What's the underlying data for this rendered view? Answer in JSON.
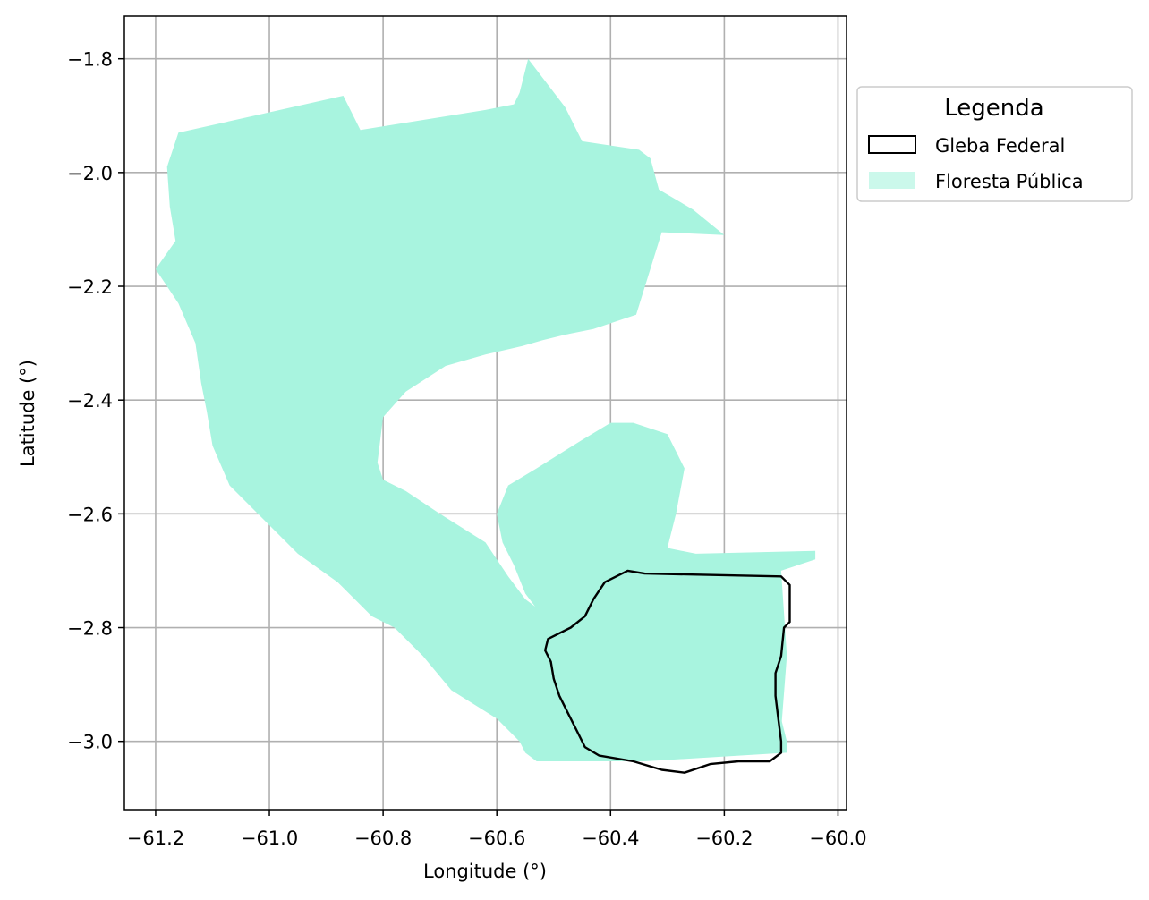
{
  "chart_data": {
    "type": "map",
    "xlabel": "Longitude (°)",
    "ylabel": "Latitude (°)",
    "xlim": [
      -61.255,
      -59.985
    ],
    "ylim": [
      -3.12,
      -1.725
    ],
    "xticks": [
      -61.2,
      -61.0,
      -60.8,
      -60.6,
      -60.4,
      -60.2,
      -60.0
    ],
    "yticks": [
      -1.8,
      -2.0,
      -2.2,
      -2.4,
      -2.6,
      -2.8,
      -3.0
    ],
    "xtick_labels": [
      "−61.2",
      "−61.0",
      "−60.8",
      "−60.6",
      "−60.4",
      "−60.2",
      "−60.0"
    ],
    "ytick_labels": [
      "−1.8",
      "−2.0",
      "−2.2",
      "−2.4",
      "−2.6",
      "−2.8",
      "−3.0"
    ],
    "grid": true,
    "legend": {
      "title": "Legenda",
      "placement": "outside-upper-right",
      "entries": [
        "Gleba Federal",
        "Floresta Pública"
      ]
    },
    "colors": {
      "floresta_fill": "#a8f4df",
      "gleba_stroke": "#000000",
      "grid": "#b0b0b0"
    },
    "layers": [
      {
        "name": "Floresta Pública",
        "style": "fill",
        "polygons": [
          [
            [
              -61.18,
              -1.99
            ],
            [
              -61.16,
              -1.93
            ],
            [
              -60.87,
              -1.865
            ],
            [
              -60.84,
              -1.925
            ],
            [
              -60.62,
              -1.89
            ],
            [
              -60.57,
              -1.88
            ],
            [
              -60.56,
              -1.86
            ],
            [
              -60.545,
              -1.8
            ],
            [
              -60.48,
              -1.885
            ],
            [
              -60.45,
              -1.945
            ],
            [
              -60.35,
              -1.96
            ],
            [
              -60.33,
              -1.975
            ],
            [
              -60.315,
              -2.03
            ],
            [
              -60.255,
              -2.065
            ],
            [
              -60.2,
              -2.11
            ],
            [
              -60.31,
              -2.105
            ],
            [
              -60.355,
              -2.25
            ],
            [
              -60.43,
              -2.275
            ],
            [
              -60.48,
              -2.285
            ],
            [
              -60.52,
              -2.295
            ],
            [
              -60.555,
              -2.305
            ],
            [
              -60.62,
              -2.32
            ],
            [
              -60.69,
              -2.34
            ],
            [
              -60.76,
              -2.385
            ],
            [
              -60.8,
              -2.43
            ],
            [
              -60.81,
              -2.51
            ],
            [
              -60.8,
              -2.54
            ],
            [
              -60.76,
              -2.56
            ],
            [
              -60.7,
              -2.6
            ],
            [
              -60.62,
              -2.65
            ],
            [
              -60.58,
              -2.71
            ],
            [
              -60.55,
              -2.75
            ],
            [
              -60.51,
              -2.78
            ],
            [
              -60.47,
              -2.8
            ],
            [
              -60.44,
              -2.81
            ],
            [
              -60.41,
              -2.79
            ],
            [
              -60.37,
              -2.8
            ],
            [
              -60.3,
              -2.83
            ],
            [
              -60.23,
              -2.85
            ],
            [
              -60.2,
              -2.87
            ],
            [
              -60.15,
              -2.92
            ],
            [
              -60.1,
              -2.96
            ],
            [
              -60.09,
              -3.0
            ],
            [
              -60.09,
              -3.02
            ],
            [
              -60.34,
              -3.035
            ],
            [
              -60.53,
              -3.035
            ],
            [
              -60.55,
              -3.02
            ],
            [
              -60.56,
              -3.0
            ],
            [
              -60.6,
              -2.96
            ],
            [
              -60.68,
              -2.91
            ],
            [
              -60.73,
              -2.85
            ],
            [
              -60.78,
              -2.8
            ],
            [
              -60.82,
              -2.78
            ],
            [
              -60.85,
              -2.75
            ],
            [
              -60.88,
              -2.72
            ],
            [
              -60.95,
              -2.67
            ],
            [
              -61.02,
              -2.6
            ],
            [
              -61.07,
              -2.55
            ],
            [
              -61.1,
              -2.48
            ],
            [
              -61.11,
              -2.42
            ],
            [
              -61.12,
              -2.37
            ],
            [
              -61.13,
              -2.3
            ],
            [
              -61.16,
              -2.23
            ],
            [
              -61.2,
              -2.17
            ],
            [
              -61.165,
              -2.12
            ],
            [
              -61.175,
              -2.06
            ]
          ],
          [
            [
              -60.53,
              -2.52
            ],
            [
              -60.45,
              -2.47
            ],
            [
              -60.4,
              -2.44
            ],
            [
              -60.36,
              -2.44
            ],
            [
              -60.3,
              -2.46
            ],
            [
              -60.27,
              -2.52
            ],
            [
              -60.285,
              -2.6
            ],
            [
              -60.3,
              -2.66
            ],
            [
              -60.25,
              -2.67
            ],
            [
              -60.04,
              -2.665
            ],
            [
              -60.04,
              -2.68
            ],
            [
              -60.1,
              -2.7
            ],
            [
              -60.09,
              -2.85
            ],
            [
              -60.1,
              -2.98
            ],
            [
              -60.15,
              -3.0
            ],
            [
              -60.2,
              -3.02
            ],
            [
              -60.3,
              -3.03
            ],
            [
              -60.38,
              -2.98
            ],
            [
              -60.42,
              -2.9
            ],
            [
              -60.44,
              -2.86
            ],
            [
              -60.47,
              -2.84
            ],
            [
              -60.5,
              -2.8
            ],
            [
              -60.52,
              -2.78
            ],
            [
              -60.55,
              -2.74
            ],
            [
              -60.57,
              -2.69
            ],
            [
              -60.59,
              -2.65
            ],
            [
              -60.6,
              -2.6
            ],
            [
              -60.58,
              -2.55
            ]
          ]
        ]
      },
      {
        "name": "Gleba Federal",
        "style": "outline",
        "polygons": [
          [
            [
              -60.51,
              -2.82
            ],
            [
              -60.47,
              -2.8
            ],
            [
              -60.445,
              -2.78
            ],
            [
              -60.43,
              -2.75
            ],
            [
              -60.41,
              -2.72
            ],
            [
              -60.37,
              -2.7
            ],
            [
              -60.34,
              -2.705
            ],
            [
              -60.1,
              -2.71
            ],
            [
              -60.085,
              -2.725
            ],
            [
              -60.085,
              -2.79
            ],
            [
              -60.095,
              -2.8
            ],
            [
              -60.1,
              -2.85
            ],
            [
              -60.11,
              -2.88
            ],
            [
              -60.11,
              -2.92
            ],
            [
              -60.105,
              -2.96
            ],
            [
              -60.1,
              -3.0
            ],
            [
              -60.1,
              -3.02
            ],
            [
              -60.12,
              -3.035
            ],
            [
              -60.175,
              -3.035
            ],
            [
              -60.225,
              -3.04
            ],
            [
              -60.27,
              -3.055
            ],
            [
              -60.31,
              -3.05
            ],
            [
              -60.36,
              -3.035
            ],
            [
              -60.42,
              -3.025
            ],
            [
              -60.445,
              -3.01
            ],
            [
              -60.46,
              -2.98
            ],
            [
              -60.475,
              -2.95
            ],
            [
              -60.49,
              -2.92
            ],
            [
              -60.5,
              -2.89
            ],
            [
              -60.505,
              -2.86
            ],
            [
              -60.515,
              -2.84
            ]
          ]
        ]
      }
    ]
  }
}
